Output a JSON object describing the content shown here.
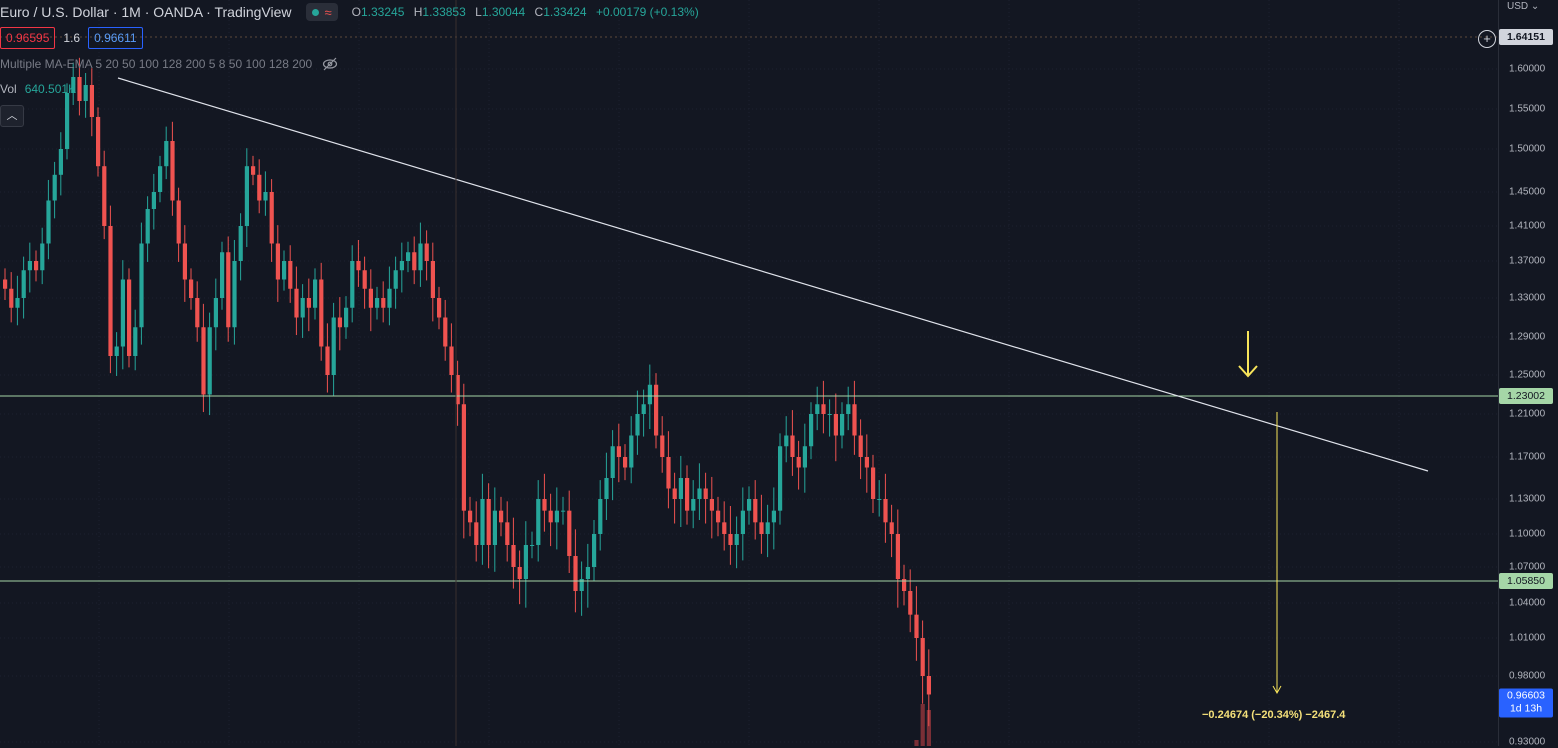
{
  "header": {
    "title": "Euro / U.S. Dollar · 1M · OANDA · TradingView",
    "ohlc": {
      "o_label": "O",
      "o": "1.33245",
      "h_label": "H",
      "h": "1.33853",
      "l_label": "L",
      "l": "1.30044",
      "c_label": "C",
      "c": "1.33424",
      "change": "+0.00179 (+0.13%)"
    },
    "status_icon": "market-status-dot",
    "wave_icon": "replay-wave-icon",
    "flag_icon": "flag-icon"
  },
  "quote": {
    "sell": "0.96595",
    "spread": "1.6",
    "buy": "0.96611"
  },
  "indicators": {
    "ma_label": "Multiple MA-EMA 5 20 50 100 128 200 5 8 50 100 128 200",
    "visibility_icon": "eye-crossed-icon",
    "vol_label": "Vol",
    "vol_value": "640.501K",
    "collapse_icon": "chevron-up-icon"
  },
  "price_axis": {
    "currency": "USD",
    "ticks": [
      "1.60000",
      "1.55000",
      "1.50000",
      "1.45000",
      "1.41000",
      "1.37000",
      "1.33000",
      "1.29000",
      "1.25000",
      "1.21000",
      "1.17000",
      "1.13000",
      "1.10000",
      "1.07000",
      "1.04000",
      "1.01000",
      "0.98000",
      "0.93000"
    ],
    "crosshair_price": "1.64151",
    "level_upper": "1.23002",
    "level_lower": "1.05850",
    "last_price": "0.96603",
    "countdown": "1d 13h"
  },
  "measure": {
    "label": "−0.24674 (−20.34%) −2467.4"
  },
  "colors": {
    "background": "#131722",
    "up": "#26a69a",
    "down": "#ef5350",
    "support_line": "#a5d6a7",
    "trend_line": "#ffffff",
    "arrow": "#f7e45a"
  },
  "chart_data": {
    "type": "candlestick",
    "ticks": [
      1.6,
      1.55,
      1.5,
      1.45,
      1.41,
      1.37,
      1.33,
      1.29,
      1.25,
      1.21,
      1.17,
      1.13,
      1.1,
      1.07,
      1.04,
      1.01,
      0.98,
      0.93
    ],
    "horizontal_levels": [
      1.23002,
      1.0585
    ],
    "crosshair_price": 1.64151,
    "last_price": 0.96603,
    "measure": {
      "change": -0.24674,
      "percent": -20.34,
      "pips": -2467.4
    },
    "closes": [
      1.34,
      1.32,
      1.33,
      1.36,
      1.37,
      1.36,
      1.39,
      1.44,
      1.47,
      1.5,
      1.57,
      1.59,
      1.56,
      1.58,
      1.54,
      1.48,
      1.41,
      1.27,
      1.28,
      1.35,
      1.27,
      1.3,
      1.39,
      1.43,
      1.45,
      1.48,
      1.51,
      1.44,
      1.39,
      1.35,
      1.33,
      1.3,
      1.23,
      1.3,
      1.33,
      1.38,
      1.3,
      1.37,
      1.41,
      1.48,
      1.47,
      1.44,
      1.45,
      1.39,
      1.35,
      1.37,
      1.34,
      1.31,
      1.33,
      1.32,
      1.35,
      1.28,
      1.25,
      1.31,
      1.3,
      1.32,
      1.37,
      1.36,
      1.34,
      1.32,
      1.33,
      1.32,
      1.34,
      1.36,
      1.37,
      1.38,
      1.36,
      1.39,
      1.37,
      1.33,
      1.31,
      1.28,
      1.25,
      1.22,
      1.12,
      1.11,
      1.09,
      1.13,
      1.09,
      1.12,
      1.11,
      1.09,
      1.07,
      1.06,
      1.09,
      1.09,
      1.13,
      1.12,
      1.11,
      1.12,
      1.12,
      1.08,
      1.05,
      1.06,
      1.07,
      1.1,
      1.13,
      1.15,
      1.18,
      1.17,
      1.16,
      1.19,
      1.21,
      1.22,
      1.24,
      1.19,
      1.17,
      1.14,
      1.13,
      1.15,
      1.12,
      1.13,
      1.14,
      1.13,
      1.12,
      1.11,
      1.1,
      1.09,
      1.1,
      1.12,
      1.13,
      1.11,
      1.1,
      1.11,
      1.12,
      1.18,
      1.19,
      1.17,
      1.16,
      1.18,
      1.21,
      1.22,
      1.21,
      1.21,
      1.19,
      1.21,
      1.22,
      1.19,
      1.17,
      1.16,
      1.13,
      1.13,
      1.11,
      1.1,
      1.06,
      1.05,
      1.03,
      1.01,
      0.98,
      0.966
    ]
  }
}
